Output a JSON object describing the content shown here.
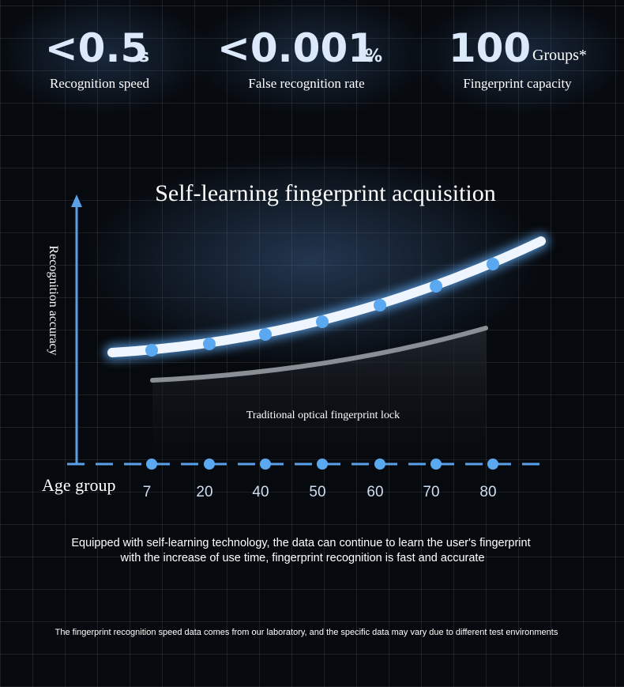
{
  "stats": [
    {
      "value": "<0.5",
      "unit": "s",
      "label": "Recognition speed"
    },
    {
      "value": "<0.001",
      "unit": "%",
      "label": "False recognition rate"
    },
    {
      "value": "100",
      "unit": "Groups*",
      "label": "Fingerprint capacity"
    }
  ],
  "chart": {
    "title": "Self-learning fingerprint acquisition",
    "y_label": "Recognition accuracy",
    "x_label": "Age group",
    "series_label": "Traditional optical fingerprint lock",
    "age_labels": [
      "7",
      "20",
      "40",
      "50",
      "60",
      "70",
      "80"
    ]
  },
  "description": [
    "Equipped with self-learning technology, the data can continue to learn the user's fingerprint",
    "with the increase of use time, fingerprint recognition is fast and accurate"
  ],
  "footnote": "The fingerprint recognition speed data comes from our laboratory, and the specific data may vary due to different test environments"
}
